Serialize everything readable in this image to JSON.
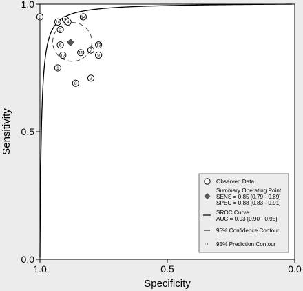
{
  "chart_data": {
    "type": "scatter",
    "xlabel": "Specificity",
    "ylabel": "Sensitivity",
    "xlim": [
      1.0,
      0.0
    ],
    "ylim": [
      0.0,
      1.0
    ],
    "x_ticks": [
      {
        "v": 1.0,
        "label": "1.0"
      },
      {
        "v": 0.5,
        "label": "0.5"
      },
      {
        "v": 0.0,
        "label": "0.0"
      }
    ],
    "y_ticks": [
      {
        "v": 0.0,
        "label": "0.0"
      },
      {
        "v": 0.5,
        "label": "0.5"
      },
      {
        "v": 1.0,
        "label": "1.0"
      }
    ],
    "observed_points": [
      {
        "label": "8",
        "specificity": 1.0,
        "sensitivity": 0.95
      },
      {
        "label": "10",
        "specificity": 0.93,
        "sensitivity": 0.93
      },
      {
        "label": "5",
        "specificity": 0.9,
        "sensitivity": 0.94
      },
      {
        "label": "4",
        "specificity": 0.89,
        "sensitivity": 0.93
      },
      {
        "label": "14",
        "specificity": 0.83,
        "sensitivity": 0.95
      },
      {
        "label": "2",
        "specificity": 0.92,
        "sensitivity": 0.9
      },
      {
        "label": "6",
        "specificity": 0.92,
        "sensitivity": 0.84
      },
      {
        "label": "12",
        "specificity": 0.91,
        "sensitivity": 0.8
      },
      {
        "label": "13",
        "specificity": 0.77,
        "sensitivity": 0.84
      },
      {
        "label": "9",
        "specificity": 0.77,
        "sensitivity": 0.8
      },
      {
        "label": "11",
        "specificity": 0.84,
        "sensitivity": 0.81
      },
      {
        "label": "7",
        "specificity": 0.8,
        "sensitivity": 0.82
      },
      {
        "label": "1",
        "specificity": 0.93,
        "sensitivity": 0.75
      },
      {
        "label": "3",
        "specificity": 0.8,
        "sensitivity": 0.71
      },
      {
        "label": "8b",
        "display": "8",
        "specificity": 0.86,
        "sensitivity": 0.69
      }
    ],
    "summary_point": {
      "specificity": 0.88,
      "sensitivity": 0.85
    },
    "confidence_contour": {
      "center_specificity": 0.873,
      "center_sensitivity": 0.852,
      "radius_specificity": 0.077,
      "radius_sensitivity": 0.076
    },
    "sroc_auc": 0.93,
    "legend": {
      "placement": "bottom-right",
      "entries": [
        {
          "key": "observed",
          "lines": [
            "Observed Data"
          ]
        },
        {
          "key": "summary",
          "lines": [
            "Summary Operating Point",
            "SENS = 0.85 [0.79 - 0.89]",
            "SPEC = 0.88 [0.83 - 0.91]"
          ]
        },
        {
          "key": "sroc",
          "lines": [
            "SROC Curve",
            "AUC = 0.93 [0.90 - 0.95]"
          ]
        },
        {
          "key": "confidence",
          "lines": [
            "95% Confidence Contour"
          ]
        },
        {
          "key": "prediction",
          "lines": [
            "95% Prediction Contour"
          ]
        }
      ]
    }
  }
}
